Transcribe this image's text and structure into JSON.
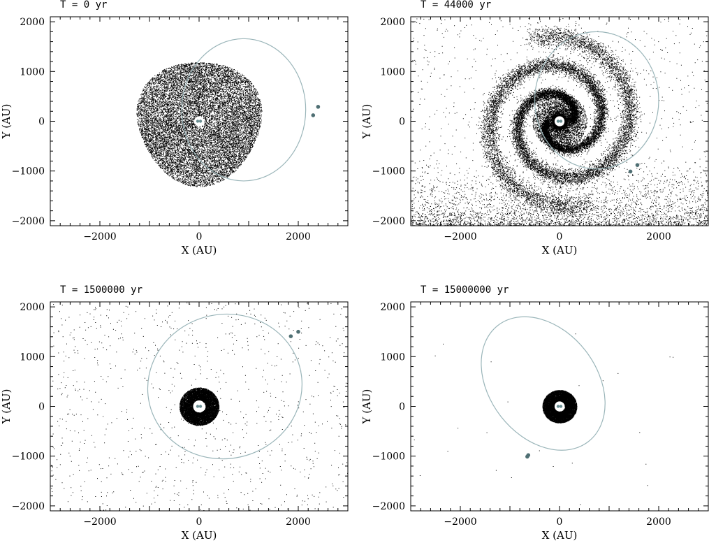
{
  "figure": {
    "description_panels": 4
  },
  "chart_data": [
    {
      "type": "scatter",
      "title": "T = 0 yr",
      "xlabel": "X (AU)",
      "ylabel": "Y (AU)",
      "xlim": [
        -3000,
        3000
      ],
      "ylim": [
        -2100,
        2100
      ],
      "xticks": [
        -2000,
        0,
        2000
      ],
      "yticks": [
        -2000,
        -1000,
        0,
        1000,
        2000
      ],
      "xtick_labels": [
        "−2000",
        "0",
        "2000"
      ],
      "ytick_labels": [
        "−2000",
        "−1000",
        "0",
        "1000",
        "2000"
      ],
      "particle_distribution": {
        "kind": "disk",
        "inner_radius": 100,
        "outer_radius": 1250,
        "color": "#000000"
      },
      "orbit": {
        "center": [
          900,
          230
        ],
        "semi_axes": [
          1250,
          1430
        ],
        "angle": 0,
        "color": "#9ab5b9"
      },
      "binary_stars": [
        {
          "x": 0,
          "y": 0
        }
      ],
      "companion_stars": [
        {
          "x": 2300,
          "y": 120
        },
        {
          "x": 2400,
          "y": 290
        }
      ]
    },
    {
      "type": "scatter",
      "title": "T = 44000 yr",
      "xlabel": "X (AU)",
      "ylabel": "Y (AU)",
      "xlim": [
        -3000,
        3000
      ],
      "ylim": [
        -2100,
        2100
      ],
      "xticks": [
        -2000,
        0,
        2000
      ],
      "yticks": [
        -2000,
        -1000,
        0,
        1000,
        2000
      ],
      "xtick_labels": [
        "−2000",
        "0",
        "2000"
      ],
      "ytick_labels": [
        "−2000",
        "−1000",
        "0",
        "1000",
        "2000"
      ],
      "particle_distribution": {
        "kind": "spiral",
        "inner_radius": 100,
        "outer_radius": 1800,
        "color": "#000000"
      },
      "orbit": {
        "center": [
          750,
          420
        ],
        "semi_axes": [
          1250,
          1380
        ],
        "angle": 0,
        "color": "#9ab5b9"
      },
      "binary_stars": [
        {
          "x": 0,
          "y": 0
        }
      ],
      "companion_stars": [
        {
          "x": 1430,
          "y": -1010
        },
        {
          "x": 1570,
          "y": -880
        }
      ]
    },
    {
      "type": "scatter",
      "title": "T = 1500000 yr",
      "xlabel": "X (AU)",
      "ylabel": "Y (AU)",
      "xlim": [
        -3000,
        3000
      ],
      "ylim": [
        -2100,
        2100
      ],
      "xticks": [
        -2000,
        0,
        2000
      ],
      "yticks": [
        -2000,
        -1000,
        0,
        1000,
        2000
      ],
      "xtick_labels": [
        "−2000",
        "0",
        "2000"
      ],
      "ytick_labels": [
        "−2000",
        "−1000",
        "0",
        "1000",
        "2000"
      ],
      "particle_distribution": {
        "kind": "ring",
        "inner_radius": 120,
        "outer_radius": 380,
        "color": "#000000"
      },
      "orbit": {
        "center": [
          520,
          400
        ],
        "semi_axes": [
          1560,
          1450
        ],
        "angle": -12,
        "color": "#9ab5b9"
      },
      "binary_stars": [
        {
          "x": 0,
          "y": 0
        }
      ],
      "companion_stars": [
        {
          "x": 1850,
          "y": 1410
        },
        {
          "x": 2000,
          "y": 1500
        }
      ]
    },
    {
      "type": "scatter",
      "title": "T = 15000000 yr",
      "xlabel": "X (AU)",
      "ylabel": "Y (AU)",
      "xlim": [
        -3000,
        3000
      ],
      "ylim": [
        -2100,
        2100
      ],
      "xticks": [
        -2000,
        0,
        2000
      ],
      "yticks": [
        -2000,
        -1000,
        0,
        1000,
        2000
      ],
      "xtick_labels": [
        "−2000",
        "0",
        "2000"
      ],
      "ytick_labels": [
        "−2000",
        "−1000",
        "0",
        "1000",
        "2000"
      ],
      "particle_distribution": {
        "kind": "ring",
        "inner_radius": 100,
        "outer_radius": 330,
        "color": "#000000"
      },
      "orbit": {
        "center": [
          -330,
          460
        ],
        "semi_axes": [
          1080,
          1480
        ],
        "angle": -38,
        "color": "#9ab5b9"
      },
      "binary_stars": [
        {
          "x": 0,
          "y": 0
        }
      ],
      "companion_stars": [
        {
          "x": -650,
          "y": -1010
        },
        {
          "x": -630,
          "y": -980
        }
      ]
    }
  ]
}
